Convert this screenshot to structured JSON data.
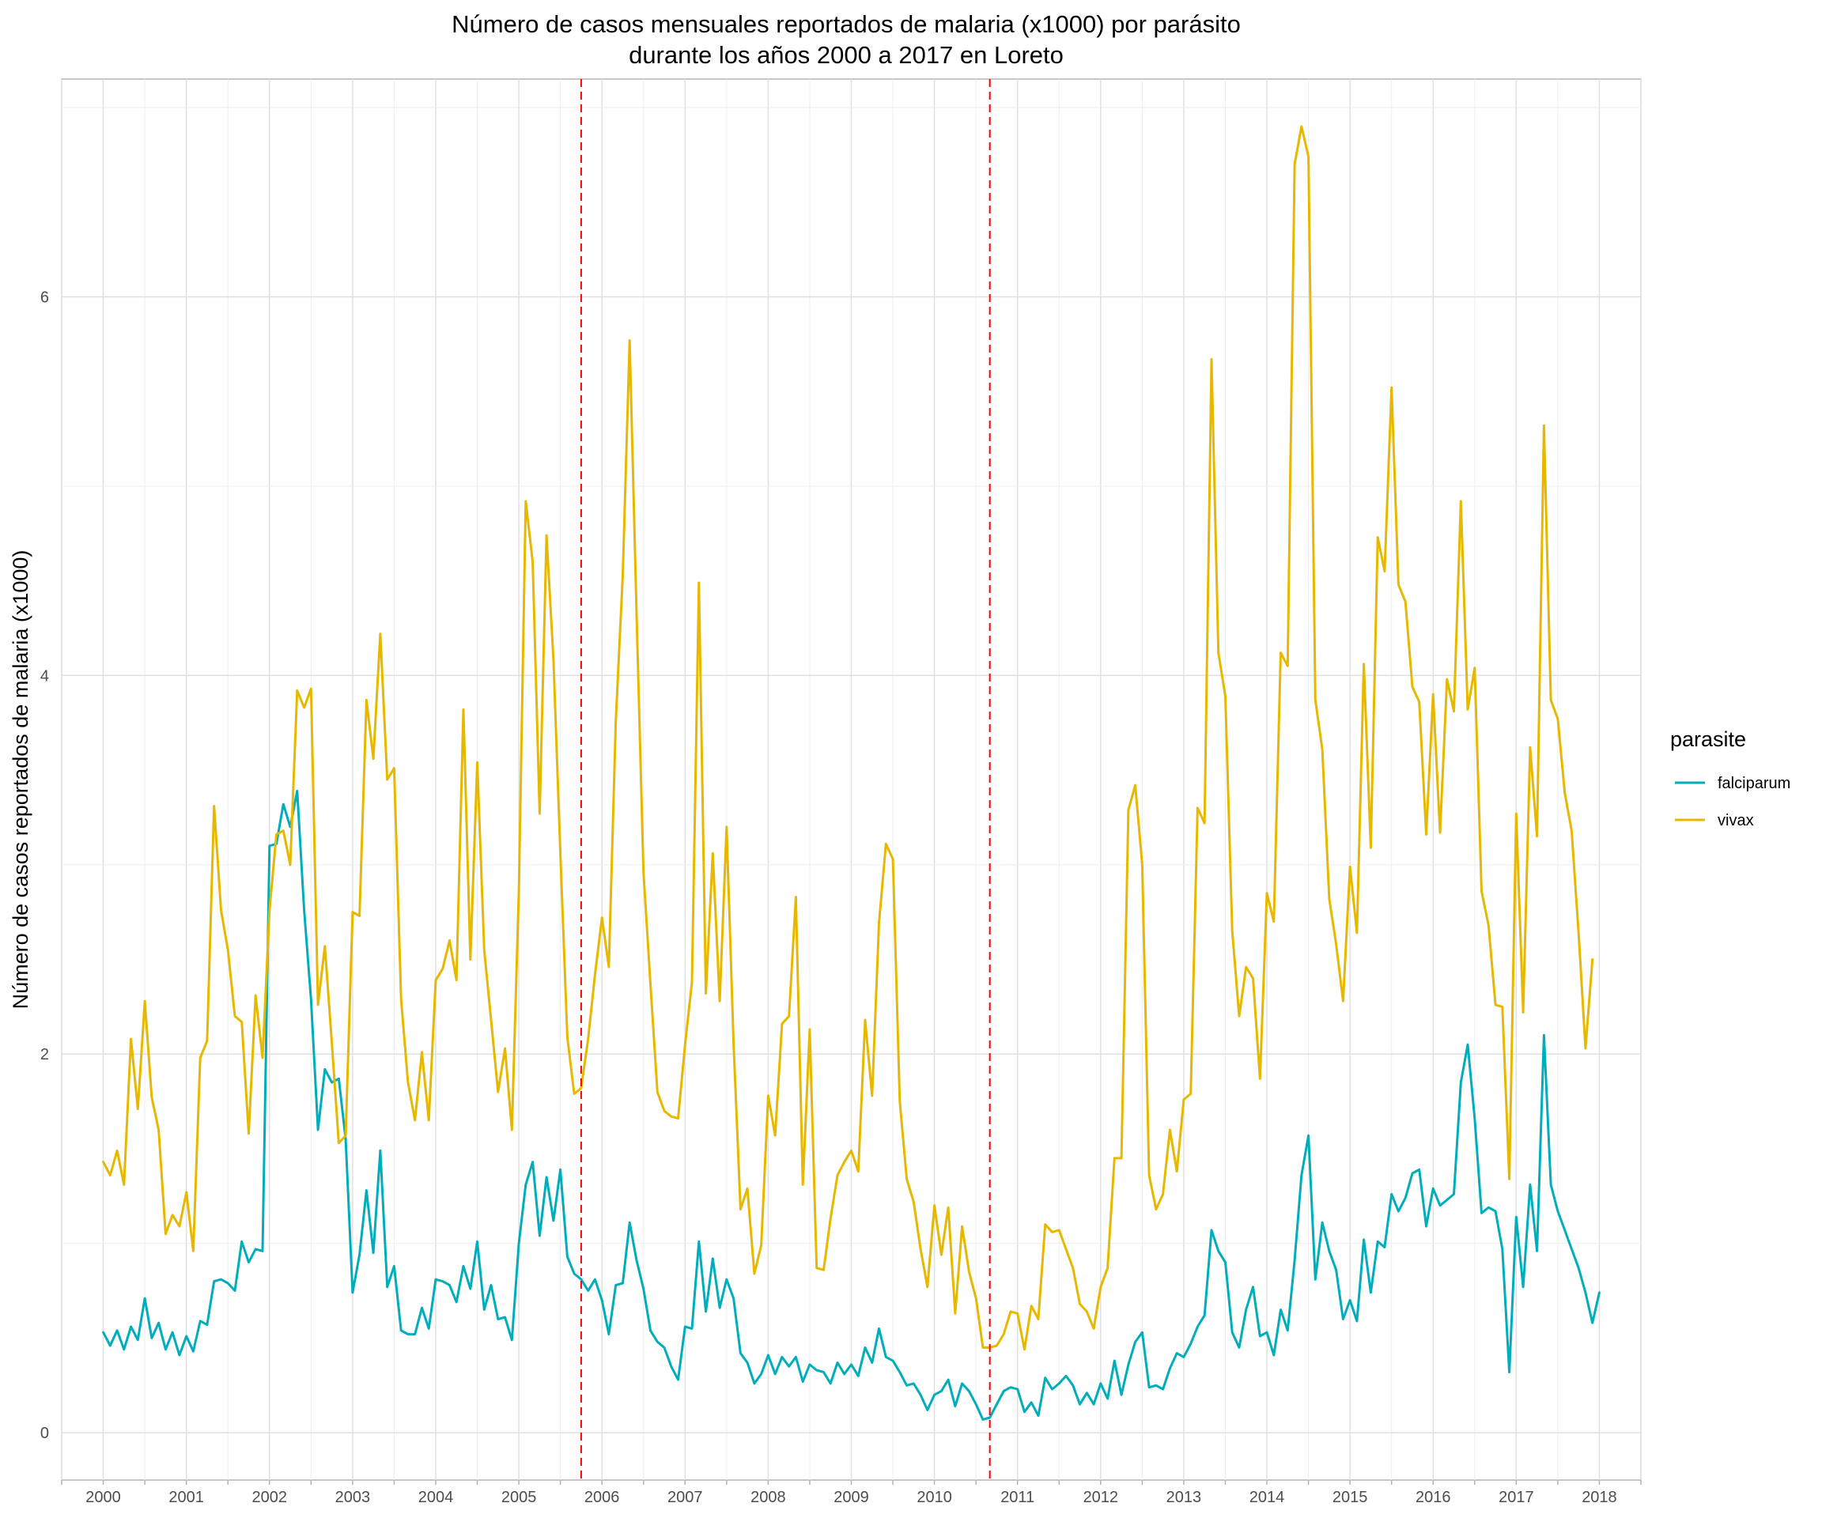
{
  "chart_data": {
    "type": "line",
    "title": "Número de casos mensuales reportados de malaria (x1000) por parásito",
    "subtitle": "durante los años 2000 a 2017 en Loreto",
    "xlabel": "",
    "ylabel": "Número de casos reportados de malaria (x1000)",
    "xlim": [
      1999.5,
      2018.5
    ],
    "ylim": [
      -0.25,
      7.15
    ],
    "x_ticks": [
      2000,
      2001,
      2002,
      2003,
      2004,
      2005,
      2006,
      2007,
      2008,
      2009,
      2010,
      2011,
      2012,
      2013,
      2014,
      2015,
      2016,
      2017,
      2018
    ],
    "x_tick_labels": [
      "2000",
      "2001",
      "2002",
      "2003",
      "2004",
      "2005",
      "2006",
      "2007",
      "2008",
      "2009",
      "2010",
      "2011",
      "2012",
      "2013",
      "2014",
      "2015",
      "2016",
      "2017",
      "2018"
    ],
    "y_ticks": [
      0,
      2,
      4,
      6
    ],
    "y_tick_labels": [
      "0",
      "2",
      "4",
      "6"
    ],
    "grid": true,
    "x_start": 2000,
    "x_step": 0.0833333,
    "vlines": [
      {
        "x": 2005.75,
        "color": "#ff0000",
        "style": "dashed"
      },
      {
        "x": 2010.6667,
        "color": "#ff0000",
        "style": "dashed"
      }
    ],
    "legend": {
      "title": "parasite",
      "position": "right"
    },
    "series": [
      {
        "name": "falciparum",
        "color": "#00aebb",
        "values": [
          0.53,
          0.46,
          0.54,
          0.44,
          0.56,
          0.49,
          0.71,
          0.5,
          0.58,
          0.44,
          0.53,
          0.41,
          0.51,
          0.43,
          0.59,
          0.57,
          0.8,
          0.81,
          0.79,
          0.75,
          1.01,
          0.9,
          0.97,
          0.96,
          3.1,
          3.11,
          3.32,
          3.2,
          3.39,
          2.76,
          2.29,
          1.6,
          1.92,
          1.85,
          1.87,
          1.55,
          0.74,
          0.94,
          1.28,
          0.95,
          1.49,
          0.77,
          0.88,
          0.54,
          0.52,
          0.52,
          0.66,
          0.55,
          0.81,
          0.8,
          0.78,
          0.69,
          0.88,
          0.76,
          1.01,
          0.65,
          0.78,
          0.6,
          0.61,
          0.49,
          1.0,
          1.31,
          1.43,
          1.04,
          1.35,
          1.12,
          1.39,
          0.93,
          0.84,
          0.81,
          0.75,
          0.81,
          0.7,
          0.52,
          0.78,
          0.79,
          1.11,
          0.91,
          0.76,
          0.54,
          0.48,
          0.45,
          0.35,
          0.28,
          0.56,
          0.55,
          1.01,
          0.64,
          0.92,
          0.66,
          0.81,
          0.71,
          0.42,
          0.37,
          0.26,
          0.31,
          0.41,
          0.31,
          0.4,
          0.35,
          0.4,
          0.27,
          0.36,
          0.33,
          0.32,
          0.26,
          0.37,
          0.31,
          0.36,
          0.3,
          0.45,
          0.37,
          0.55,
          0.4,
          0.38,
          0.32,
          0.25,
          0.26,
          0.2,
          0.12,
          0.2,
          0.22,
          0.28,
          0.14,
          0.26,
          0.22,
          0.15,
          0.07,
          0.08,
          0.15,
          0.22,
          0.24,
          0.23,
          0.11,
          0.16,
          0.09,
          0.29,
          0.23,
          0.26,
          0.3,
          0.25,
          0.15,
          0.21,
          0.15,
          0.26,
          0.18,
          0.38,
          0.2,
          0.36,
          0.48,
          0.53,
          0.24,
          0.25,
          0.23,
          0.34,
          0.42,
          0.4,
          0.47,
          0.56,
          0.62,
          1.07,
          0.96,
          0.9,
          0.53,
          0.45,
          0.65,
          0.77,
          0.51,
          0.53,
          0.41,
          0.65,
          0.54,
          0.91,
          1.36,
          1.57,
          0.81,
          1.11,
          0.96,
          0.86,
          0.6,
          0.7,
          0.59,
          1.02,
          0.74,
          1.01,
          0.98,
          1.26,
          1.17,
          1.24,
          1.37,
          1.39,
          1.09,
          1.29,
          1.2,
          1.23,
          1.26,
          1.85,
          2.05,
          1.66,
          1.16,
          1.19,
          1.17,
          0.97,
          0.32,
          1.14,
          0.77,
          1.31,
          0.96,
          2.1,
          1.31,
          1.17,
          1.07,
          0.97,
          0.87,
          0.74,
          0.58,
          0.74
        ]
      },
      {
        "name": "vivax",
        "color": "#e7b800",
        "values": [
          1.43,
          1.36,
          1.49,
          1.31,
          2.08,
          1.71,
          2.28,
          1.77,
          1.6,
          1.05,
          1.15,
          1.09,
          1.27,
          0.96,
          1.98,
          2.07,
          3.31,
          2.76,
          2.55,
          2.2,
          2.17,
          1.58,
          2.31,
          1.98,
          2.76,
          3.16,
          3.18,
          3.0,
          3.92,
          3.83,
          3.93,
          2.26,
          2.57,
          2.06,
          1.53,
          1.57,
          2.75,
          2.73,
          3.87,
          3.56,
          4.22,
          3.45,
          3.51,
          2.29,
          1.85,
          1.65,
          2.01,
          1.65,
          2.39,
          2.45,
          2.6,
          2.39,
          3.82,
          2.5,
          3.54,
          2.55,
          2.18,
          1.8,
          2.03,
          1.6,
          2.86,
          4.92,
          4.6,
          3.27,
          4.74,
          4.08,
          3.06,
          2.09,
          1.79,
          1.82,
          2.08,
          2.42,
          2.72,
          2.46,
          3.76,
          4.53,
          5.77,
          4.32,
          2.96,
          2.37,
          1.8,
          1.7,
          1.67,
          1.66,
          2.05,
          2.38,
          4.49,
          2.32,
          3.06,
          2.28,
          3.2,
          2.06,
          1.18,
          1.29,
          0.84,
          0.99,
          1.78,
          1.57,
          2.16,
          2.2,
          2.83,
          1.31,
          2.13,
          0.87,
          0.86,
          1.13,
          1.36,
          1.43,
          1.49,
          1.38,
          2.18,
          1.78,
          2.69,
          3.11,
          3.03,
          1.75,
          1.34,
          1.22,
          0.97,
          0.77,
          1.2,
          0.94,
          1.19,
          0.63,
          1.09,
          0.85,
          0.71,
          0.45,
          0.45,
          0.46,
          0.52,
          0.64,
          0.63,
          0.44,
          0.67,
          0.6,
          1.1,
          1.06,
          1.07,
          0.97,
          0.87,
          0.68,
          0.64,
          0.55,
          0.77,
          0.87,
          1.45,
          1.45,
          3.29,
          3.42,
          3.0,
          1.36,
          1.18,
          1.26,
          1.6,
          1.38,
          1.76,
          1.79,
          3.3,
          3.22,
          5.67,
          4.12,
          3.89,
          2.65,
          2.2,
          2.46,
          2.4,
          1.87,
          2.85,
          2.7,
          4.12,
          4.05,
          6.7,
          6.9,
          6.74,
          3.87,
          3.61,
          2.82,
          2.58,
          2.28,
          2.99,
          2.64,
          4.06,
          3.09,
          4.73,
          4.55,
          5.52,
          4.48,
          4.39,
          3.94,
          3.86,
          3.16,
          3.9,
          3.17,
          3.98,
          3.81,
          4.92,
          3.82,
          4.04,
          2.86,
          2.68,
          2.26,
          2.25,
          1.34,
          3.27,
          2.22,
          3.62,
          3.15,
          5.32,
          3.87,
          3.77,
          3.38,
          3.18,
          2.64,
          2.03,
          2.5
        ]
      }
    ]
  }
}
